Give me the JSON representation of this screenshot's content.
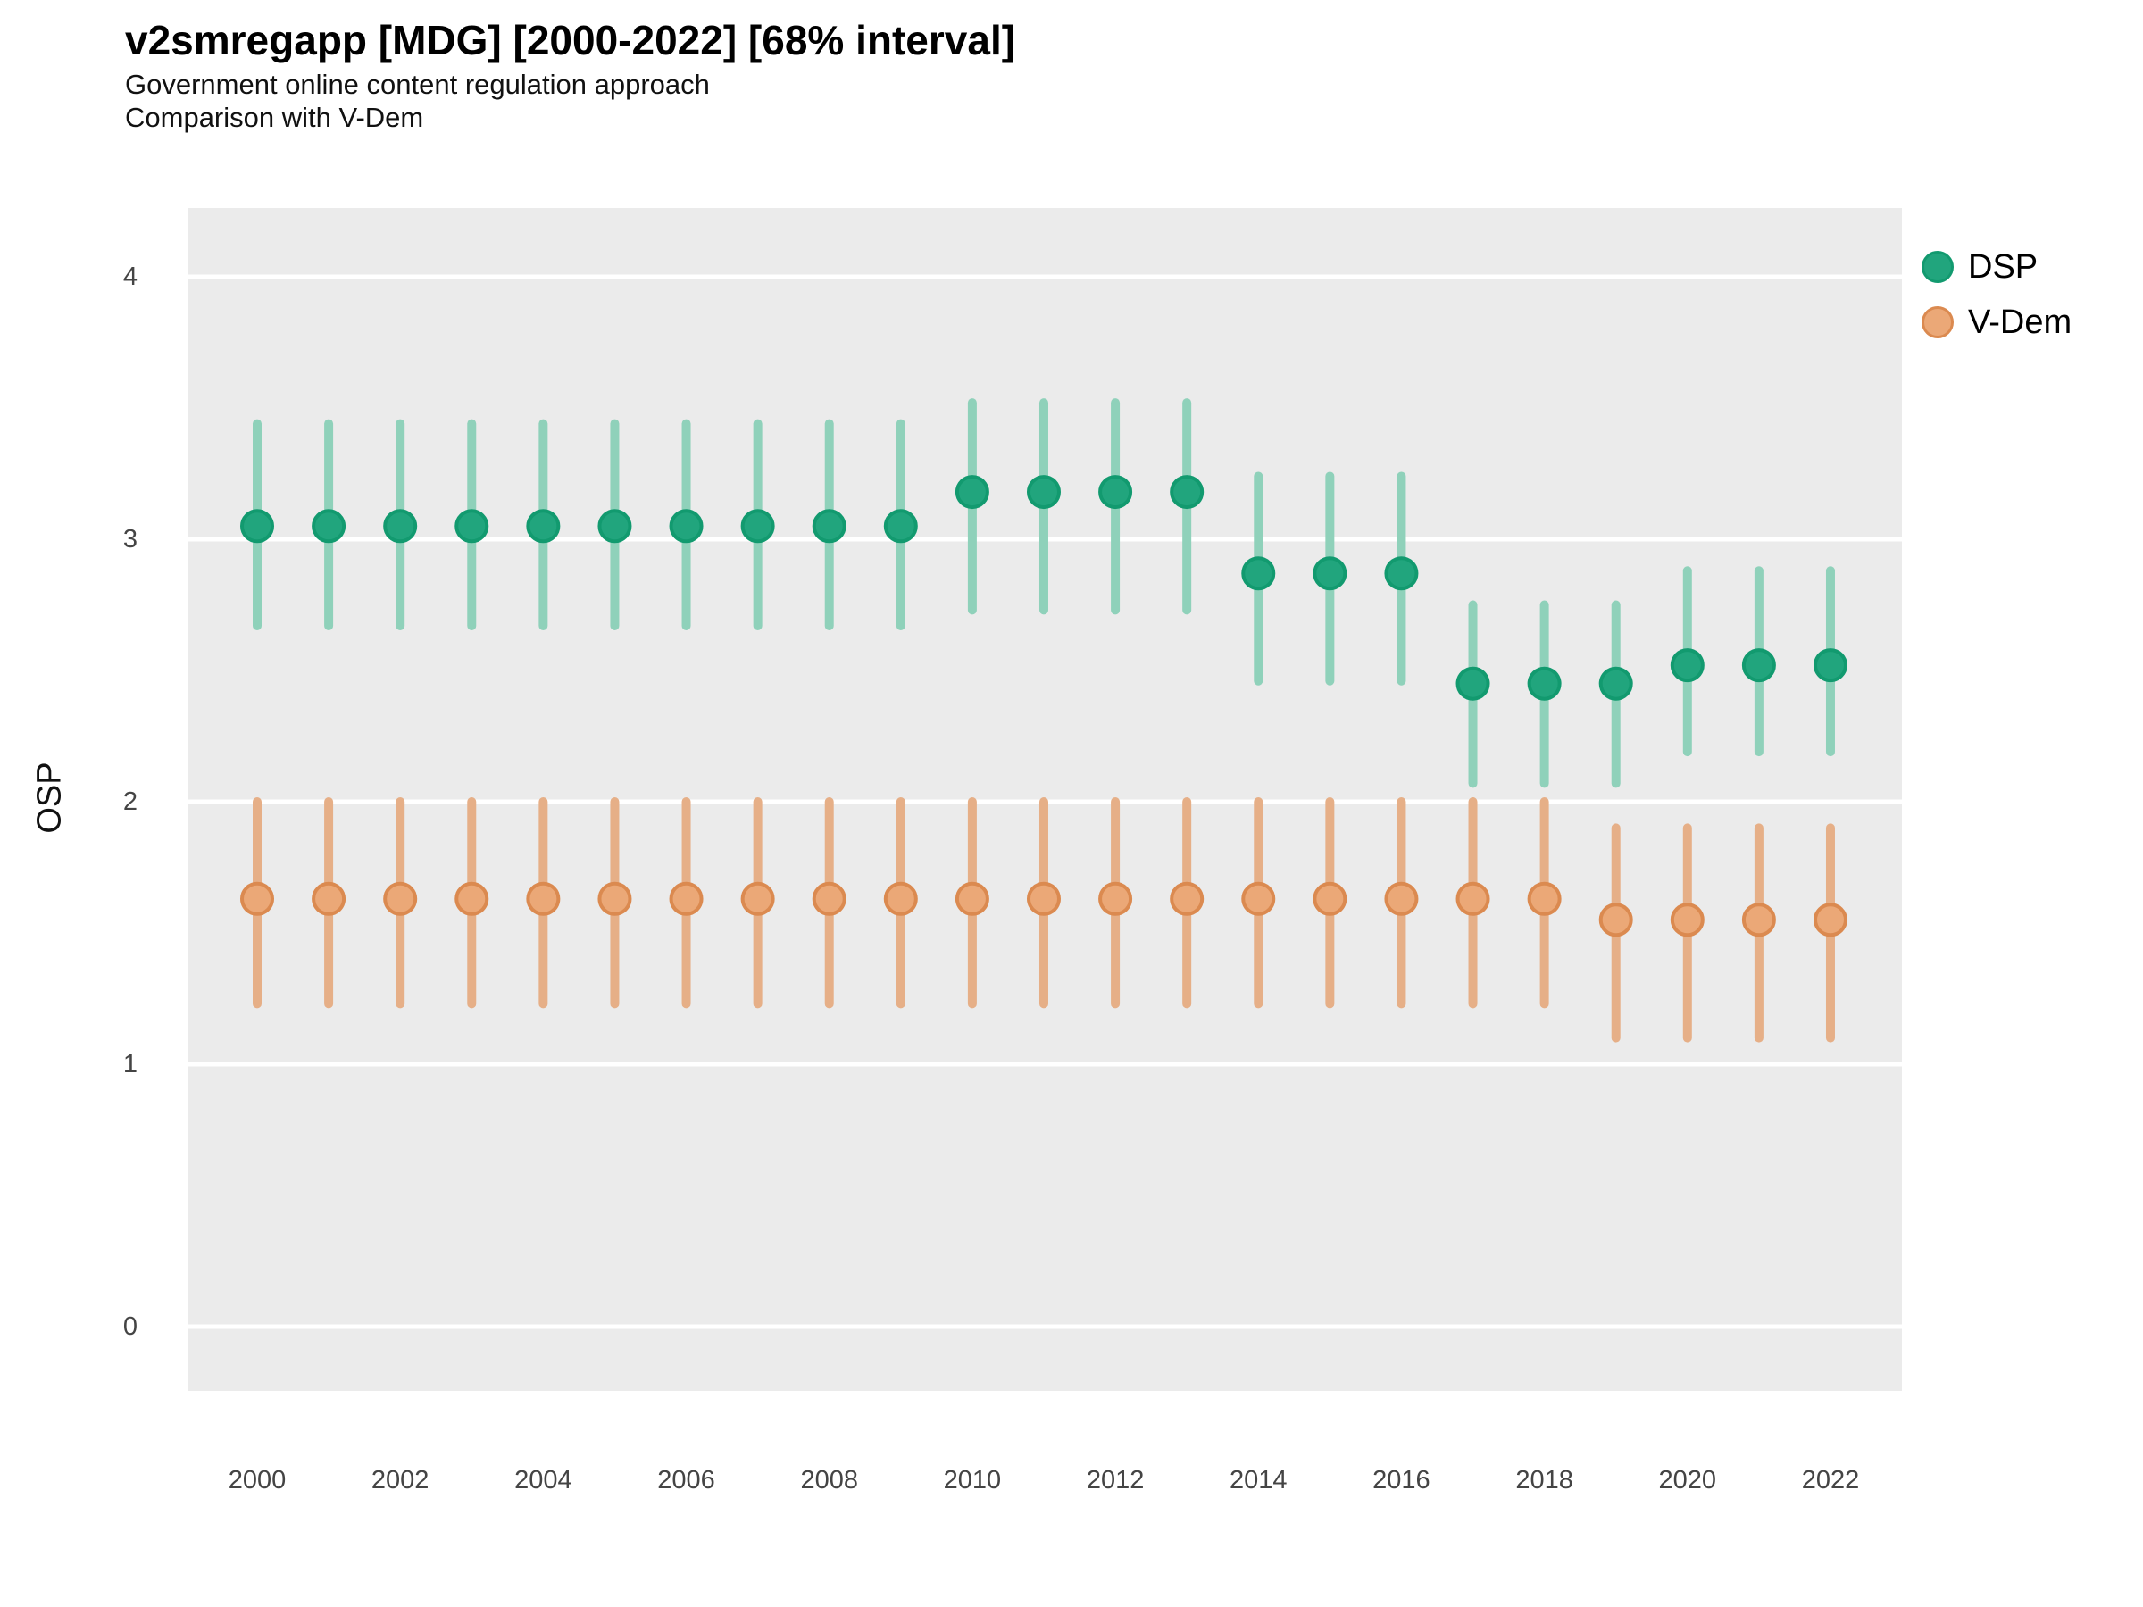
{
  "title": "v2smregapp [MDG] [2000-2022] [68% interval]",
  "subtitle1": "Government online content regulation approach",
  "subtitle2": "Comparison with V-Dem",
  "y_axis_label": "OSP",
  "panel_background": "#EBEBEB",
  "gridline_color": "#FFFFFF",
  "chart_data": {
    "type": "scatter",
    "title": "v2smregapp [MDG] [2000-2022] [68% interval]",
    "xlabel": "",
    "ylabel": "OSP",
    "x_ticks": [
      2000,
      2002,
      2004,
      2006,
      2008,
      2010,
      2012,
      2014,
      2016,
      2018,
      2020,
      2022
    ],
    "y_ticks": [
      4,
      3,
      2,
      1,
      0
    ],
    "ylim": [
      -0.26,
      4.26
    ],
    "grid": "horizontal-major-only",
    "legend_position": "right-top",
    "error_bar_interval": "68%",
    "series": [
      {
        "name": "DSP",
        "point_fill": "#21A57D",
        "point_stroke": "#129A6F",
        "bar_color": "#8FD1BA",
        "points": [
          {
            "year": 2000,
            "est": 3.05,
            "lo": 2.67,
            "hi": 3.44
          },
          {
            "year": 2001,
            "est": 3.05,
            "lo": 2.67,
            "hi": 3.44
          },
          {
            "year": 2002,
            "est": 3.05,
            "lo": 2.67,
            "hi": 3.44
          },
          {
            "year": 2003,
            "est": 3.05,
            "lo": 2.67,
            "hi": 3.44
          },
          {
            "year": 2004,
            "est": 3.05,
            "lo": 2.67,
            "hi": 3.44
          },
          {
            "year": 2005,
            "est": 3.05,
            "lo": 2.67,
            "hi": 3.44
          },
          {
            "year": 2006,
            "est": 3.05,
            "lo": 2.67,
            "hi": 3.44
          },
          {
            "year": 2007,
            "est": 3.05,
            "lo": 2.67,
            "hi": 3.44
          },
          {
            "year": 2008,
            "est": 3.05,
            "lo": 2.67,
            "hi": 3.44
          },
          {
            "year": 2009,
            "est": 3.05,
            "lo": 2.67,
            "hi": 3.44
          },
          {
            "year": 2010,
            "est": 3.18,
            "lo": 2.73,
            "hi": 3.52
          },
          {
            "year": 2011,
            "est": 3.18,
            "lo": 2.73,
            "hi": 3.52
          },
          {
            "year": 2012,
            "est": 3.18,
            "lo": 2.73,
            "hi": 3.52
          },
          {
            "year": 2013,
            "est": 3.18,
            "lo": 2.73,
            "hi": 3.52
          },
          {
            "year": 2014,
            "est": 2.87,
            "lo": 2.46,
            "hi": 3.24
          },
          {
            "year": 2015,
            "est": 2.87,
            "lo": 2.46,
            "hi": 3.24
          },
          {
            "year": 2016,
            "est": 2.87,
            "lo": 2.46,
            "hi": 3.24
          },
          {
            "year": 2017,
            "est": 2.45,
            "lo": 2.07,
            "hi": 2.75
          },
          {
            "year": 2018,
            "est": 2.45,
            "lo": 2.07,
            "hi": 2.75
          },
          {
            "year": 2019,
            "est": 2.45,
            "lo": 2.07,
            "hi": 2.75
          },
          {
            "year": 2020,
            "est": 2.52,
            "lo": 2.19,
            "hi": 2.88
          },
          {
            "year": 2021,
            "est": 2.52,
            "lo": 2.19,
            "hi": 2.88
          },
          {
            "year": 2022,
            "est": 2.52,
            "lo": 2.19,
            "hi": 2.88
          }
        ]
      },
      {
        "name": "V-Dem",
        "point_fill": "#EBA877",
        "point_stroke": "#DB8A50",
        "bar_color": "#E6AF87",
        "points": [
          {
            "year": 2000,
            "est": 1.63,
            "lo": 1.23,
            "hi": 2.0
          },
          {
            "year": 2001,
            "est": 1.63,
            "lo": 1.23,
            "hi": 2.0
          },
          {
            "year": 2002,
            "est": 1.63,
            "lo": 1.23,
            "hi": 2.0
          },
          {
            "year": 2003,
            "est": 1.63,
            "lo": 1.23,
            "hi": 2.0
          },
          {
            "year": 2004,
            "est": 1.63,
            "lo": 1.23,
            "hi": 2.0
          },
          {
            "year": 2005,
            "est": 1.63,
            "lo": 1.23,
            "hi": 2.0
          },
          {
            "year": 2006,
            "est": 1.63,
            "lo": 1.23,
            "hi": 2.0
          },
          {
            "year": 2007,
            "est": 1.63,
            "lo": 1.23,
            "hi": 2.0
          },
          {
            "year": 2008,
            "est": 1.63,
            "lo": 1.23,
            "hi": 2.0
          },
          {
            "year": 2009,
            "est": 1.63,
            "lo": 1.23,
            "hi": 2.0
          },
          {
            "year": 2010,
            "est": 1.63,
            "lo": 1.23,
            "hi": 2.0
          },
          {
            "year": 2011,
            "est": 1.63,
            "lo": 1.23,
            "hi": 2.0
          },
          {
            "year": 2012,
            "est": 1.63,
            "lo": 1.23,
            "hi": 2.0
          },
          {
            "year": 2013,
            "est": 1.63,
            "lo": 1.23,
            "hi": 2.0
          },
          {
            "year": 2014,
            "est": 1.63,
            "lo": 1.23,
            "hi": 2.0
          },
          {
            "year": 2015,
            "est": 1.63,
            "lo": 1.23,
            "hi": 2.0
          },
          {
            "year": 2016,
            "est": 1.63,
            "lo": 1.23,
            "hi": 2.0
          },
          {
            "year": 2017,
            "est": 1.63,
            "lo": 1.23,
            "hi": 2.0
          },
          {
            "year": 2018,
            "est": 1.63,
            "lo": 1.23,
            "hi": 2.0
          },
          {
            "year": 2019,
            "est": 1.55,
            "lo": 1.1,
            "hi": 1.9
          },
          {
            "year": 2020,
            "est": 1.55,
            "lo": 1.1,
            "hi": 1.9
          },
          {
            "year": 2021,
            "est": 1.55,
            "lo": 1.1,
            "hi": 1.9
          },
          {
            "year": 2022,
            "est": 1.55,
            "lo": 1.1,
            "hi": 1.9
          }
        ]
      }
    ]
  }
}
